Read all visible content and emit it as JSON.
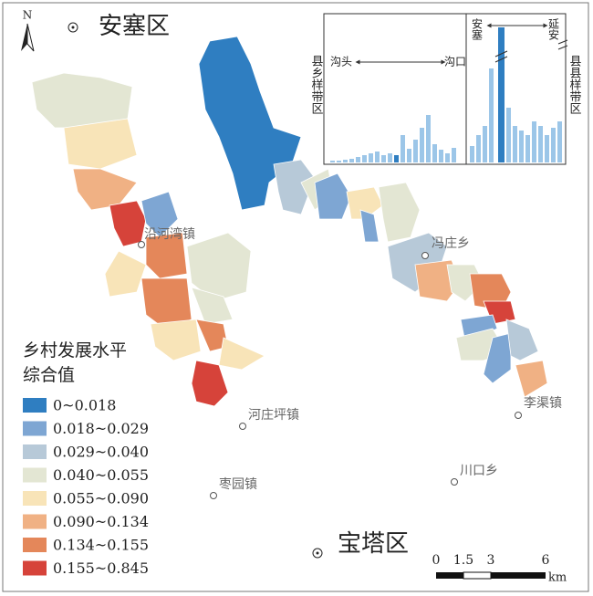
{
  "north_arrow": "N",
  "places": {
    "north_district": "安塞区",
    "south_district": "宝塔区",
    "towns": [
      "沿河湾镇",
      "冯庄乡",
      "河庄坪镇",
      "李渠镇",
      "川口乡",
      "枣园镇"
    ]
  },
  "inset": {
    "left_zone": "县乡样带区",
    "right_zone": "县县样带区",
    "gully_head": "沟头",
    "gully_mouth": "沟口",
    "ansai": "安塞",
    "yanan": "延安"
  },
  "legend": {
    "title": [
      "乡村发展水平",
      "综合值"
    ],
    "items": [
      {
        "label": "0~0.018",
        "color": "#2f7ec1"
      },
      {
        "label": "0.018~0.029",
        "color": "#7ea6d3"
      },
      {
        "label": "0.029~0.040",
        "color": "#b7c9d8"
      },
      {
        "label": "0.040~0.055",
        "color": "#e3e6d3"
      },
      {
        "label": "0.055~0.090",
        "color": "#f8e4b8"
      },
      {
        "label": "0.090~0.134",
        "color": "#f0b184"
      },
      {
        "label": "0.134~0.155",
        "color": "#e4875a"
      },
      {
        "label": "0.155~0.845",
        "color": "#d6433a"
      }
    ]
  },
  "scale": {
    "ticks": [
      0,
      1.5,
      3,
      6
    ],
    "unit": "km"
  }
}
